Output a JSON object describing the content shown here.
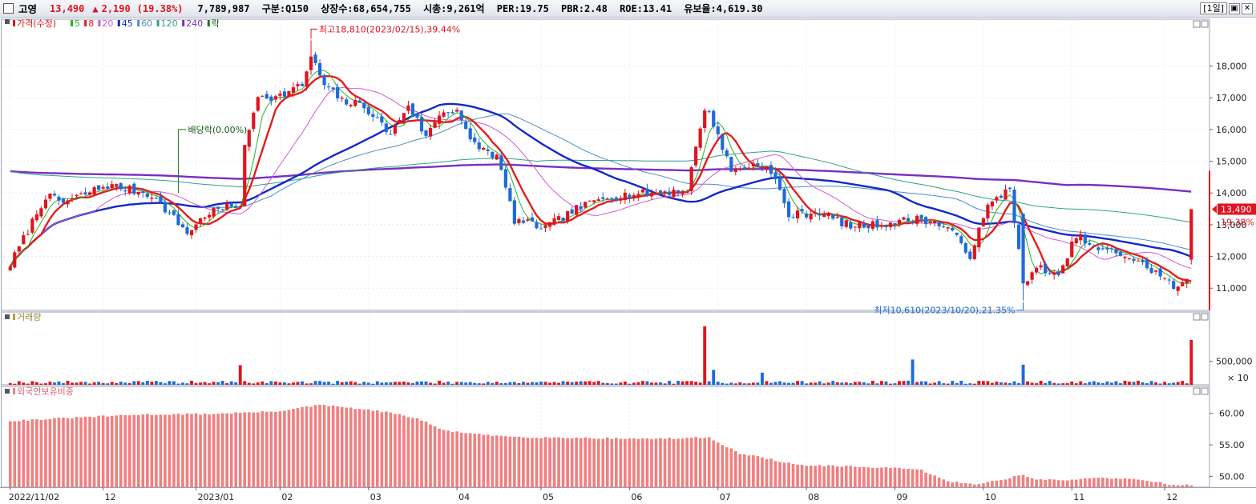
{
  "header": {
    "name": "고영",
    "price": "13,490",
    "change_arrow": "▲",
    "change": "2,190",
    "change_pct": "(19.38%)",
    "volume": "7,789,987",
    "market": "구분:Q150",
    "listed": "상장수:68,654,755",
    "mcap": "시총:9,261억",
    "per": "PER:19.75",
    "pbr": "PBR:2.48",
    "roe": "ROE:13.41",
    "reserve": "유보율:4,619.30",
    "period_button": "[1일]"
  },
  "colors": {
    "up": "#e0141e",
    "down": "#1f6ad8",
    "ma5": "#28b428",
    "ma8": "#e31e1e",
    "ma20": "#d25ad2",
    "ma45": "#1428c8",
    "ma60": "#4a8fcb",
    "ma120": "#32a08c",
    "ma240": "#7a2fbf",
    "volume_up": "#e0141e",
    "foreign_bar": "#f08080"
  },
  "chart_data": [
    {
      "type": "candlestick",
      "panel": "price",
      "legend": {
        "price_label": "가격(수정)",
        "ma_labels": [
          "5",
          "8",
          "20",
          "45",
          "60",
          "120",
          "240"
        ],
        "extra_label": "락"
      },
      "y_ticks": [
        "18,000",
        "17,000",
        "16,000",
        "15,000",
        "14,000",
        "13,000",
        "12,000",
        "11,000"
      ],
      "y_range": [
        10300,
        19300
      ],
      "x_tick_labels": [
        "2022/11/02",
        "12",
        "2023/01",
        "02",
        "03",
        "04",
        "05",
        "06",
        "07",
        "08",
        "09",
        "10",
        "11",
        "12"
      ],
      "x_tick_index": [
        0,
        21,
        42,
        61,
        81,
        101,
        120,
        140,
        160,
        180,
        200,
        220,
        240,
        261
      ],
      "last_price_label": "13,490",
      "last_change_label": "19.38%",
      "annotations": {
        "high": "최고18,810(2023/02/15),39.44%",
        "low": "최저10,610(2023/10/20),21.35%",
        "dividend": "배당락(0.00%)"
      },
      "knots": [
        [
          0,
          11750
        ],
        [
          8,
          13900
        ],
        [
          12,
          13700
        ],
        [
          22,
          14250
        ],
        [
          32,
          13950
        ],
        [
          40,
          12750
        ],
        [
          45,
          13400
        ],
        [
          52,
          13650
        ],
        [
          53,
          15400
        ],
        [
          56,
          17100
        ],
        [
          60,
          17000
        ],
        [
          66,
          17400
        ],
        [
          68,
          18300
        ],
        [
          71,
          17400
        ],
        [
          75,
          16900
        ],
        [
          80,
          16750
        ],
        [
          86,
          15850
        ],
        [
          90,
          16800
        ],
        [
          94,
          15750
        ],
        [
          97,
          16500
        ],
        [
          101,
          16650
        ],
        [
          104,
          15600
        ],
        [
          110,
          15150
        ],
        [
          114,
          13150
        ],
        [
          121,
          12900
        ],
        [
          128,
          13500
        ],
        [
          135,
          13900
        ],
        [
          145,
          14000
        ],
        [
          153,
          14100
        ],
        [
          157,
          16700
        ],
        [
          159,
          16200
        ],
        [
          163,
          14700
        ],
        [
          170,
          14950
        ],
        [
          173,
          14400
        ],
        [
          176,
          13300
        ],
        [
          183,
          13400
        ],
        [
          190,
          12950
        ],
        [
          196,
          13000
        ],
        [
          206,
          13200
        ],
        [
          212,
          12900
        ],
        [
          217,
          12050
        ],
        [
          221,
          13550
        ],
        [
          226,
          14200
        ],
        [
          229,
          11100
        ],
        [
          233,
          11700
        ],
        [
          237,
          11300
        ],
        [
          241,
          12700
        ],
        [
          245,
          12250
        ],
        [
          252,
          12050
        ],
        [
          259,
          11500
        ],
        [
          264,
          10950
        ],
        [
          266,
          11300
        ]
      ],
      "last_candle": {
        "open": 11900,
        "high": 13490,
        "low": 11750,
        "close": 13490
      },
      "high_point": {
        "index": 68,
        "value": 18810
      },
      "low_point": {
        "index": 229,
        "value": 10610
      }
    },
    {
      "type": "bar",
      "panel": "volume",
      "legend": "거래량",
      "y_ticks": [
        "500,000"
      ],
      "y_unit": "× 10",
      "spikes": [
        [
          52,
          420000
        ],
        [
          157,
          1250000
        ],
        [
          159,
          320000
        ],
        [
          170,
          260000
        ],
        [
          204,
          540000
        ],
        [
          229,
          430000
        ],
        [
          267,
          960000
        ]
      ],
      "base_volume": 55000
    },
    {
      "type": "bar",
      "panel": "foreign_ownership",
      "legend": "외국인보유비중",
      "y_ticks": [
        "60.00",
        "55.00",
        "50.00"
      ],
      "y_range": [
        48.3,
        63.5
      ],
      "knots": [
        [
          0,
          58.8
        ],
        [
          20,
          59.5
        ],
        [
          30,
          59.8
        ],
        [
          45,
          59.9
        ],
        [
          60,
          60.3
        ],
        [
          70,
          61.3
        ],
        [
          75,
          61.0
        ],
        [
          85,
          60.2
        ],
        [
          92,
          59.2
        ],
        [
          98,
          57.3
        ],
        [
          108,
          56.5
        ],
        [
          118,
          56.2
        ],
        [
          130,
          56.1
        ],
        [
          140,
          56.0
        ],
        [
          150,
          56.0
        ],
        [
          158,
          56.2
        ],
        [
          165,
          53.6
        ],
        [
          170,
          53.0
        ],
        [
          178,
          51.8
        ],
        [
          188,
          51.6
        ],
        [
          198,
          51.4
        ],
        [
          206,
          51.0
        ],
        [
          212,
          49.2
        ],
        [
          218,
          48.8
        ],
        [
          223,
          49.3
        ],
        [
          229,
          50.3
        ],
        [
          232,
          49.5
        ],
        [
          240,
          49.4
        ],
        [
          244,
          49.8
        ],
        [
          252,
          49.7
        ],
        [
          259,
          49.2
        ],
        [
          262,
          48.7
        ],
        [
          267,
          48.6
        ]
      ]
    }
  ]
}
